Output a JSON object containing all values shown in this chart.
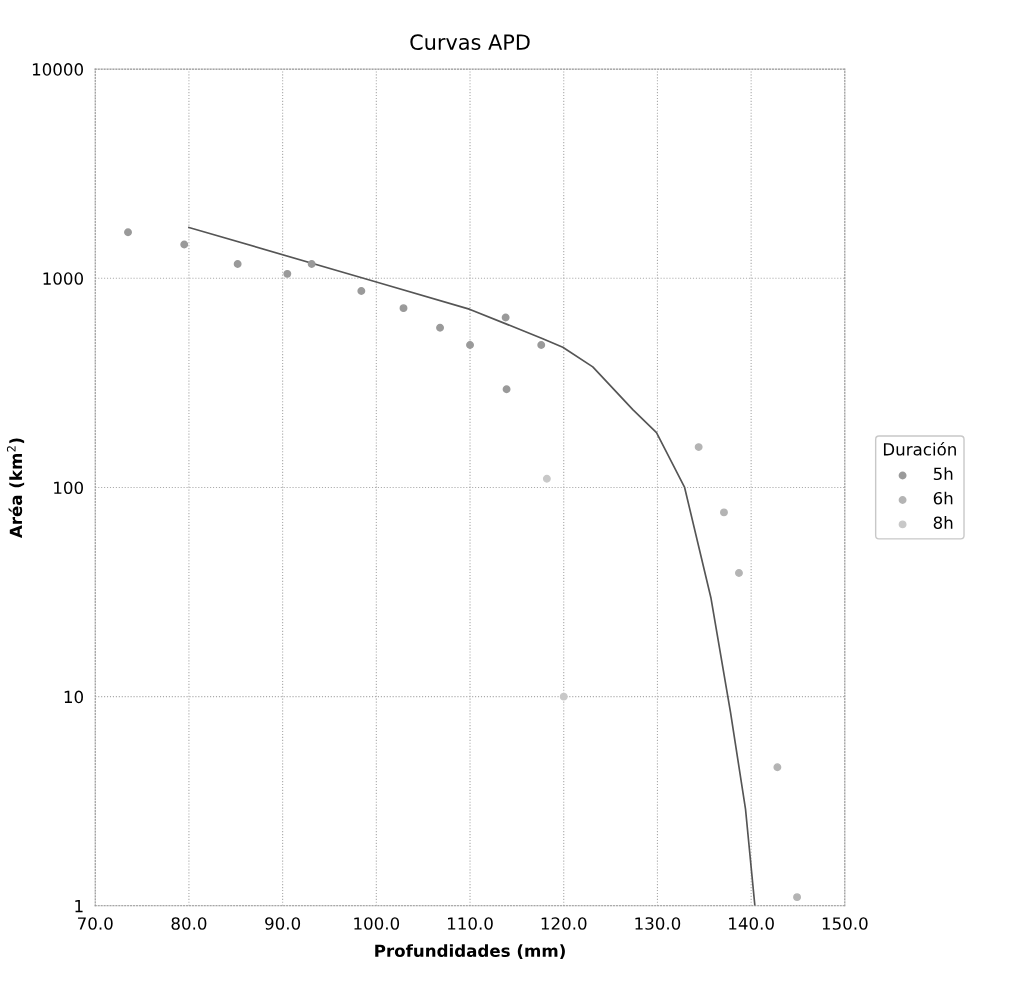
{
  "chart_data": {
    "type": "scatter",
    "title": "Curvas APD",
    "xlabel": "Profundidades (mm)",
    "ylabel": "Aréa (km$^{2}$)",
    "legend_title": "Duración",
    "log": "y",
    "xlim": [
      70,
      150
    ],
    "xticks": [
      {
        "value": 70,
        "label": "70.0"
      },
      {
        "value": 80,
        "label": "80.0"
      },
      {
        "value": 90,
        "label": "90.0"
      },
      {
        "value": 100,
        "label": "100.0"
      },
      {
        "value": 110,
        "label": "110.0"
      },
      {
        "value": 120,
        "label": "120.0"
      },
      {
        "value": 130,
        "label": "130.0"
      },
      {
        "value": 140,
        "label": "140.0"
      },
      {
        "value": 150,
        "label": "150.0"
      }
    ],
    "ylim": [
      1,
      10000
    ],
    "yticks": [
      1,
      10,
      100,
      1000,
      10000
    ],
    "grid": true,
    "legend": "right",
    "marker": "circle",
    "series": [
      {
        "name": "5h",
        "color": "#9a9a9a",
        "x": [
          73.5,
          79.5,
          85.2,
          90.5,
          93.1,
          98.4,
          102.9,
          106.8,
          110,
          113.8,
          113.9,
          117.6
        ],
        "values": [
          1660,
          1450,
          1170,
          1050,
          1170,
          870,
          720,
          580,
          480,
          650,
          295,
          480
        ]
      },
      {
        "name": "6h",
        "color": "#b4b4b4",
        "x": [
          134.4,
          137.1,
          138.7,
          142.8,
          144.9
        ],
        "values": [
          156,
          76,
          39,
          4.6,
          1.1
        ]
      },
      {
        "name": "8h",
        "color": "#c8c8c8",
        "x": [
          118.2,
          120.0
        ],
        "values": [
          110,
          10
        ]
      },
      {
        "type": "line",
        "color": "#555555",
        "marker": "none",
        "x": [
          80,
          100,
          110,
          117.7,
          119.9,
          123.1,
          127.4,
          129.9,
          132.9,
          135.7,
          137.8,
          139.4,
          140.4
        ],
        "values": [
          1750,
          960,
          710,
          516,
          468,
          377,
          235,
          183,
          100,
          29.8,
          8.4,
          2.9,
          1
        ]
      }
    ]
  }
}
